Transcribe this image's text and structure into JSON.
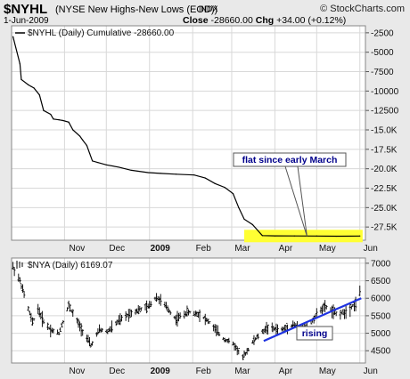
{
  "header": {
    "symbol": "$NYHL",
    "full_name": "(NYSE New Highs-New Lows (EOD))",
    "exchange": "INDX",
    "source": "© StockCharts.com",
    "date": "1-Jun-2009",
    "close_label": "Close",
    "close_value": "-28660.00",
    "chg_label": "Chg",
    "chg_value": "+34.00 (+0.12%)"
  },
  "colors": {
    "background": "#e9e9e9",
    "plot_bg": "#ffffff",
    "grid": "#d8d8d8",
    "line": "#000000",
    "highlight": "#ffff33",
    "annotation_text": "#00008b",
    "trendline": "#1e32e0"
  },
  "chart_data": [
    {
      "type": "line",
      "legend": "$NYHL (Daily) Cumulative -28660.00",
      "x_tick_labels": [
        "Nov",
        "Dec",
        "2009",
        "Feb",
        "Mar",
        "Apr",
        "May",
        "Jun"
      ],
      "y_tick_labels": [
        "-2500",
        "-5000",
        "-7500",
        "-10000",
        "-12500",
        "-15.0K",
        "-17.5K",
        "-20.0K",
        "-22.5K",
        "-25.0K",
        "-27.5K"
      ],
      "y_ticks": [
        -2500,
        -5000,
        -7500,
        -10000,
        -12500,
        -15000,
        -17500,
        -20000,
        -22500,
        -25000,
        -27500
      ],
      "ylim": [
        -29200,
        -1600
      ],
      "x": [
        "2008-09-25",
        "2008-09-30",
        "2008-10-01",
        "2008-10-06",
        "2008-10-08",
        "2008-10-10",
        "2008-10-14",
        "2008-10-17",
        "2008-10-22",
        "2008-10-24",
        "2008-10-28",
        "2008-10-31",
        "2008-11-04",
        "2008-11-07",
        "2008-11-12",
        "2008-11-14",
        "2008-11-17",
        "2008-11-19",
        "2008-11-21",
        "2008-11-25",
        "2008-12-01",
        "2008-12-10",
        "2008-12-19",
        "2008-12-31",
        "2009-01-09",
        "2009-01-20",
        "2009-02-02",
        "2009-02-10",
        "2009-02-17",
        "2009-02-24",
        "2009-03-02",
        "2009-03-06",
        "2009-03-10",
        "2009-03-16",
        "2009-03-23",
        "2009-04-01",
        "2009-04-15",
        "2009-05-01",
        "2009-05-15",
        "2009-06-01"
      ],
      "values": [
        -3000,
        -6500,
        -8500,
        -9200,
        -9400,
        -9600,
        -10500,
        -12500,
        -13000,
        -13600,
        -13700,
        -13800,
        -14000,
        -15000,
        -15800,
        -16300,
        -17000,
        -18000,
        -19000,
        -19200,
        -19500,
        -19800,
        -20200,
        -20500,
        -20600,
        -20700,
        -20800,
        -21200,
        -21900,
        -22400,
        -23200,
        -25000,
        -26500,
        -27200,
        -28600,
        -28640,
        -28650,
        -28660,
        -28690,
        -28660
      ],
      "annotations": [
        {
          "text": "flat since early March",
          "pointer_date": "2009-04-24",
          "pointer_value": -28660
        }
      ],
      "highlight_band": {
        "from": "2009-03-10",
        "to": "2009-06-03",
        "value": -28660
      }
    },
    {
      "type": "line",
      "legend": "$NYA (Daily) 6169.07",
      "x_tick_labels": [
        "Nov",
        "Dec",
        "2009",
        "Feb",
        "Mar",
        "Apr",
        "May",
        "Jun"
      ],
      "y_tick_labels": [
        "7000",
        "6500",
        "6000",
        "5500",
        "5000",
        "4500"
      ],
      "y_ticks": [
        7000,
        6500,
        6000,
        5500,
        5000,
        4500
      ],
      "ylim": [
        4150,
        7150
      ],
      "x": [
        "2008-09-25",
        "2008-09-30",
        "2008-10-03",
        "2008-10-09",
        "2008-10-13",
        "2008-10-16",
        "2008-10-22",
        "2008-10-28",
        "2008-11-04",
        "2008-11-12",
        "2008-11-20",
        "2008-11-26",
        "2008-12-02",
        "2008-12-10",
        "2008-12-19",
        "2008-12-31",
        "2009-01-06",
        "2009-01-12",
        "2009-01-20",
        "2009-01-28",
        "2009-02-06",
        "2009-02-13",
        "2009-02-23",
        "2009-03-02",
        "2009-03-09",
        "2009-03-17",
        "2009-03-26",
        "2009-04-06",
        "2009-04-14",
        "2009-04-24",
        "2009-05-04",
        "2009-05-08",
        "2009-05-15",
        "2009-05-21",
        "2009-05-29",
        "2009-06-01"
      ],
      "values": [
        6900,
        6500,
        6100,
        5300,
        5700,
        5400,
        5100,
        5000,
        5800,
        5200,
        4650,
        5100,
        5050,
        5350,
        5600,
        5750,
        6050,
        5800,
        5400,
        5600,
        5550,
        5300,
        4850,
        4700,
        4300,
        4800,
        5150,
        5100,
        5250,
        5150,
        5700,
        5750,
        5550,
        5600,
        5850,
        6169.07
      ],
      "annotations": [
        {
          "text": "rising",
          "trendline_start_date": "2009-03-24",
          "trendline_start_value": 4780,
          "trendline_end_date": "2009-06-02",
          "trendline_end_value": 6000
        }
      ]
    }
  ]
}
